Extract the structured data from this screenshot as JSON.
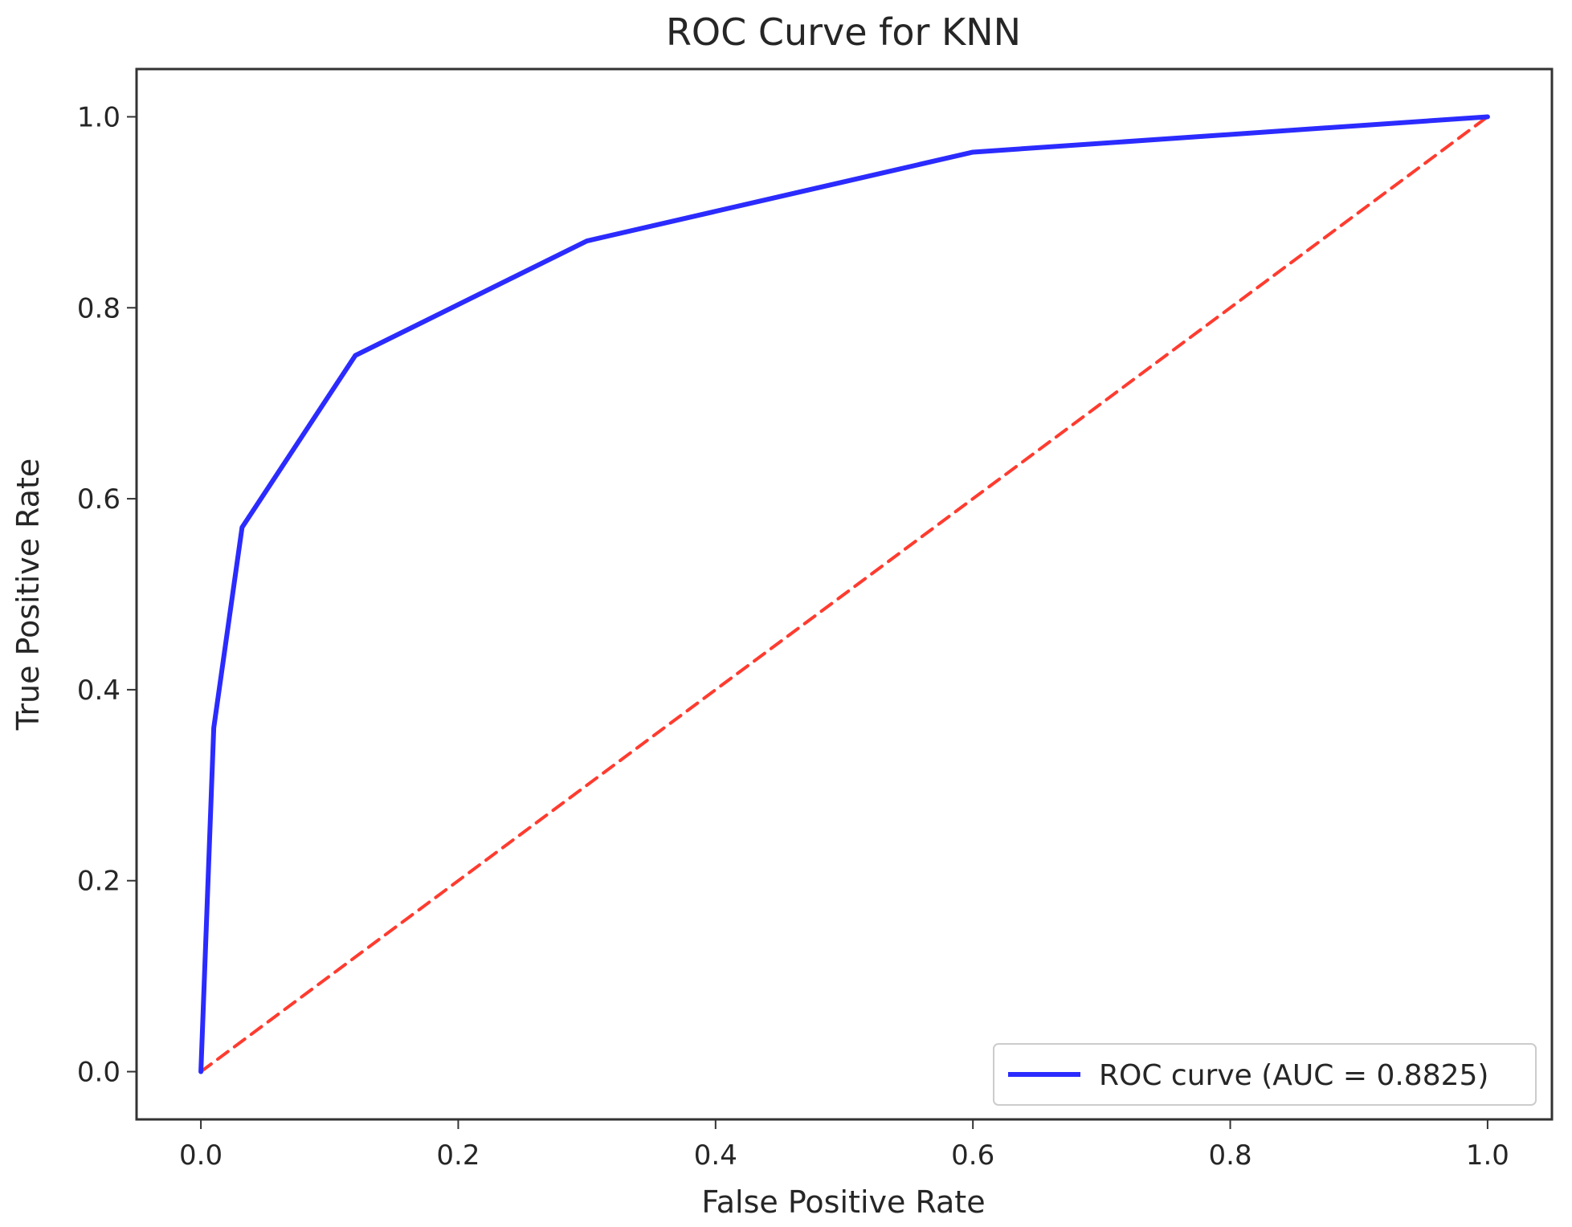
{
  "chart_data": {
    "type": "line",
    "title": "ROC Curve for KNN",
    "xlabel": "False Positive Rate",
    "ylabel": "True Positive Rate",
    "xlim": [
      -0.05,
      1.05
    ],
    "ylim": [
      -0.05,
      1.05
    ],
    "x_ticks": [
      0.0,
      0.2,
      0.4,
      0.6,
      0.8,
      1.0
    ],
    "y_ticks": [
      0.0,
      0.2,
      0.4,
      0.6,
      0.8,
      1.0
    ],
    "x_tick_labels": [
      "0.0",
      "0.2",
      "0.4",
      "0.6",
      "0.8",
      "1.0"
    ],
    "y_tick_labels": [
      "0.0",
      "0.2",
      "0.4",
      "0.6",
      "0.8",
      "1.0"
    ],
    "grid": false,
    "legend_position": "lower-right",
    "series": [
      {
        "name": "ROC curve (AUC = 0.8825)",
        "color": "#2b2bff",
        "style": "solid",
        "x": [
          0.0,
          0.01,
          0.032,
          0.12,
          0.3,
          0.6,
          1.0
        ],
        "y": [
          0.0,
          0.36,
          0.57,
          0.75,
          0.87,
          0.963,
          1.0
        ]
      },
      {
        "color": "#ff3b2f",
        "style": "dashed",
        "x": [
          0.0,
          1.0
        ],
        "y": [
          0.0,
          1.0
        ]
      }
    ]
  }
}
